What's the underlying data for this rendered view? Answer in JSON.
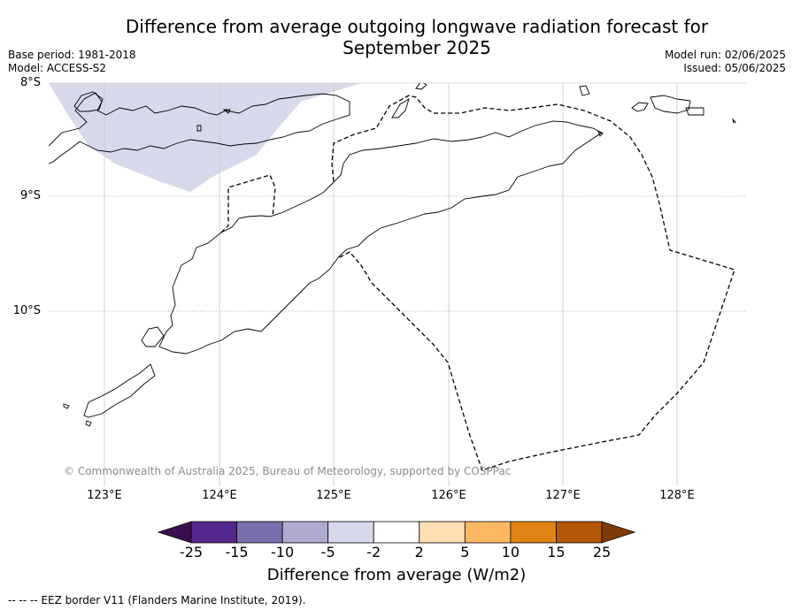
{
  "title": "Difference from average outgoing longwave radiation forecast for September 2025",
  "meta_left": {
    "base_period": "Base period: 1981-2018",
    "model": "Model: ACCESS-S2"
  },
  "meta_right": {
    "model_run": "Model run: 02/06/2025",
    "issued": "Issued: 05/06/2025"
  },
  "map": {
    "lat_labels": [
      "8°S",
      "9°S",
      "10°S"
    ],
    "lon_labels": [
      "123°E",
      "124°E",
      "125°E",
      "126°E",
      "127°E",
      "128°E"
    ],
    "copyright": "© Commonwealth of Australia 2025, Bureau of Meteorology, supported by COSPPac",
    "anomaly_region_category": "-5 to -2",
    "colors": {
      "land_outline": "#000000",
      "eez_border": "#000000",
      "anomaly_fill": "#d8d9ea",
      "grid": "#b0b0b0"
    }
  },
  "colorbar": {
    "ticks": [
      "-25",
      "-15",
      "-10",
      "-5",
      "-2",
      "2",
      "5",
      "10",
      "15",
      "25"
    ],
    "colors": [
      "#3b0f4f",
      "#54278f",
      "#7b6fad",
      "#aeaad0",
      "#d8d9ea",
      "#ffffff",
      "#fedfb2",
      "#fdb863",
      "#e08214",
      "#b35806",
      "#7f3b08"
    ],
    "label": "Difference from average (W/m2)"
  },
  "footnote": "--  --  -- EEZ border V11 (Flanders Marine Institute, 2019)."
}
